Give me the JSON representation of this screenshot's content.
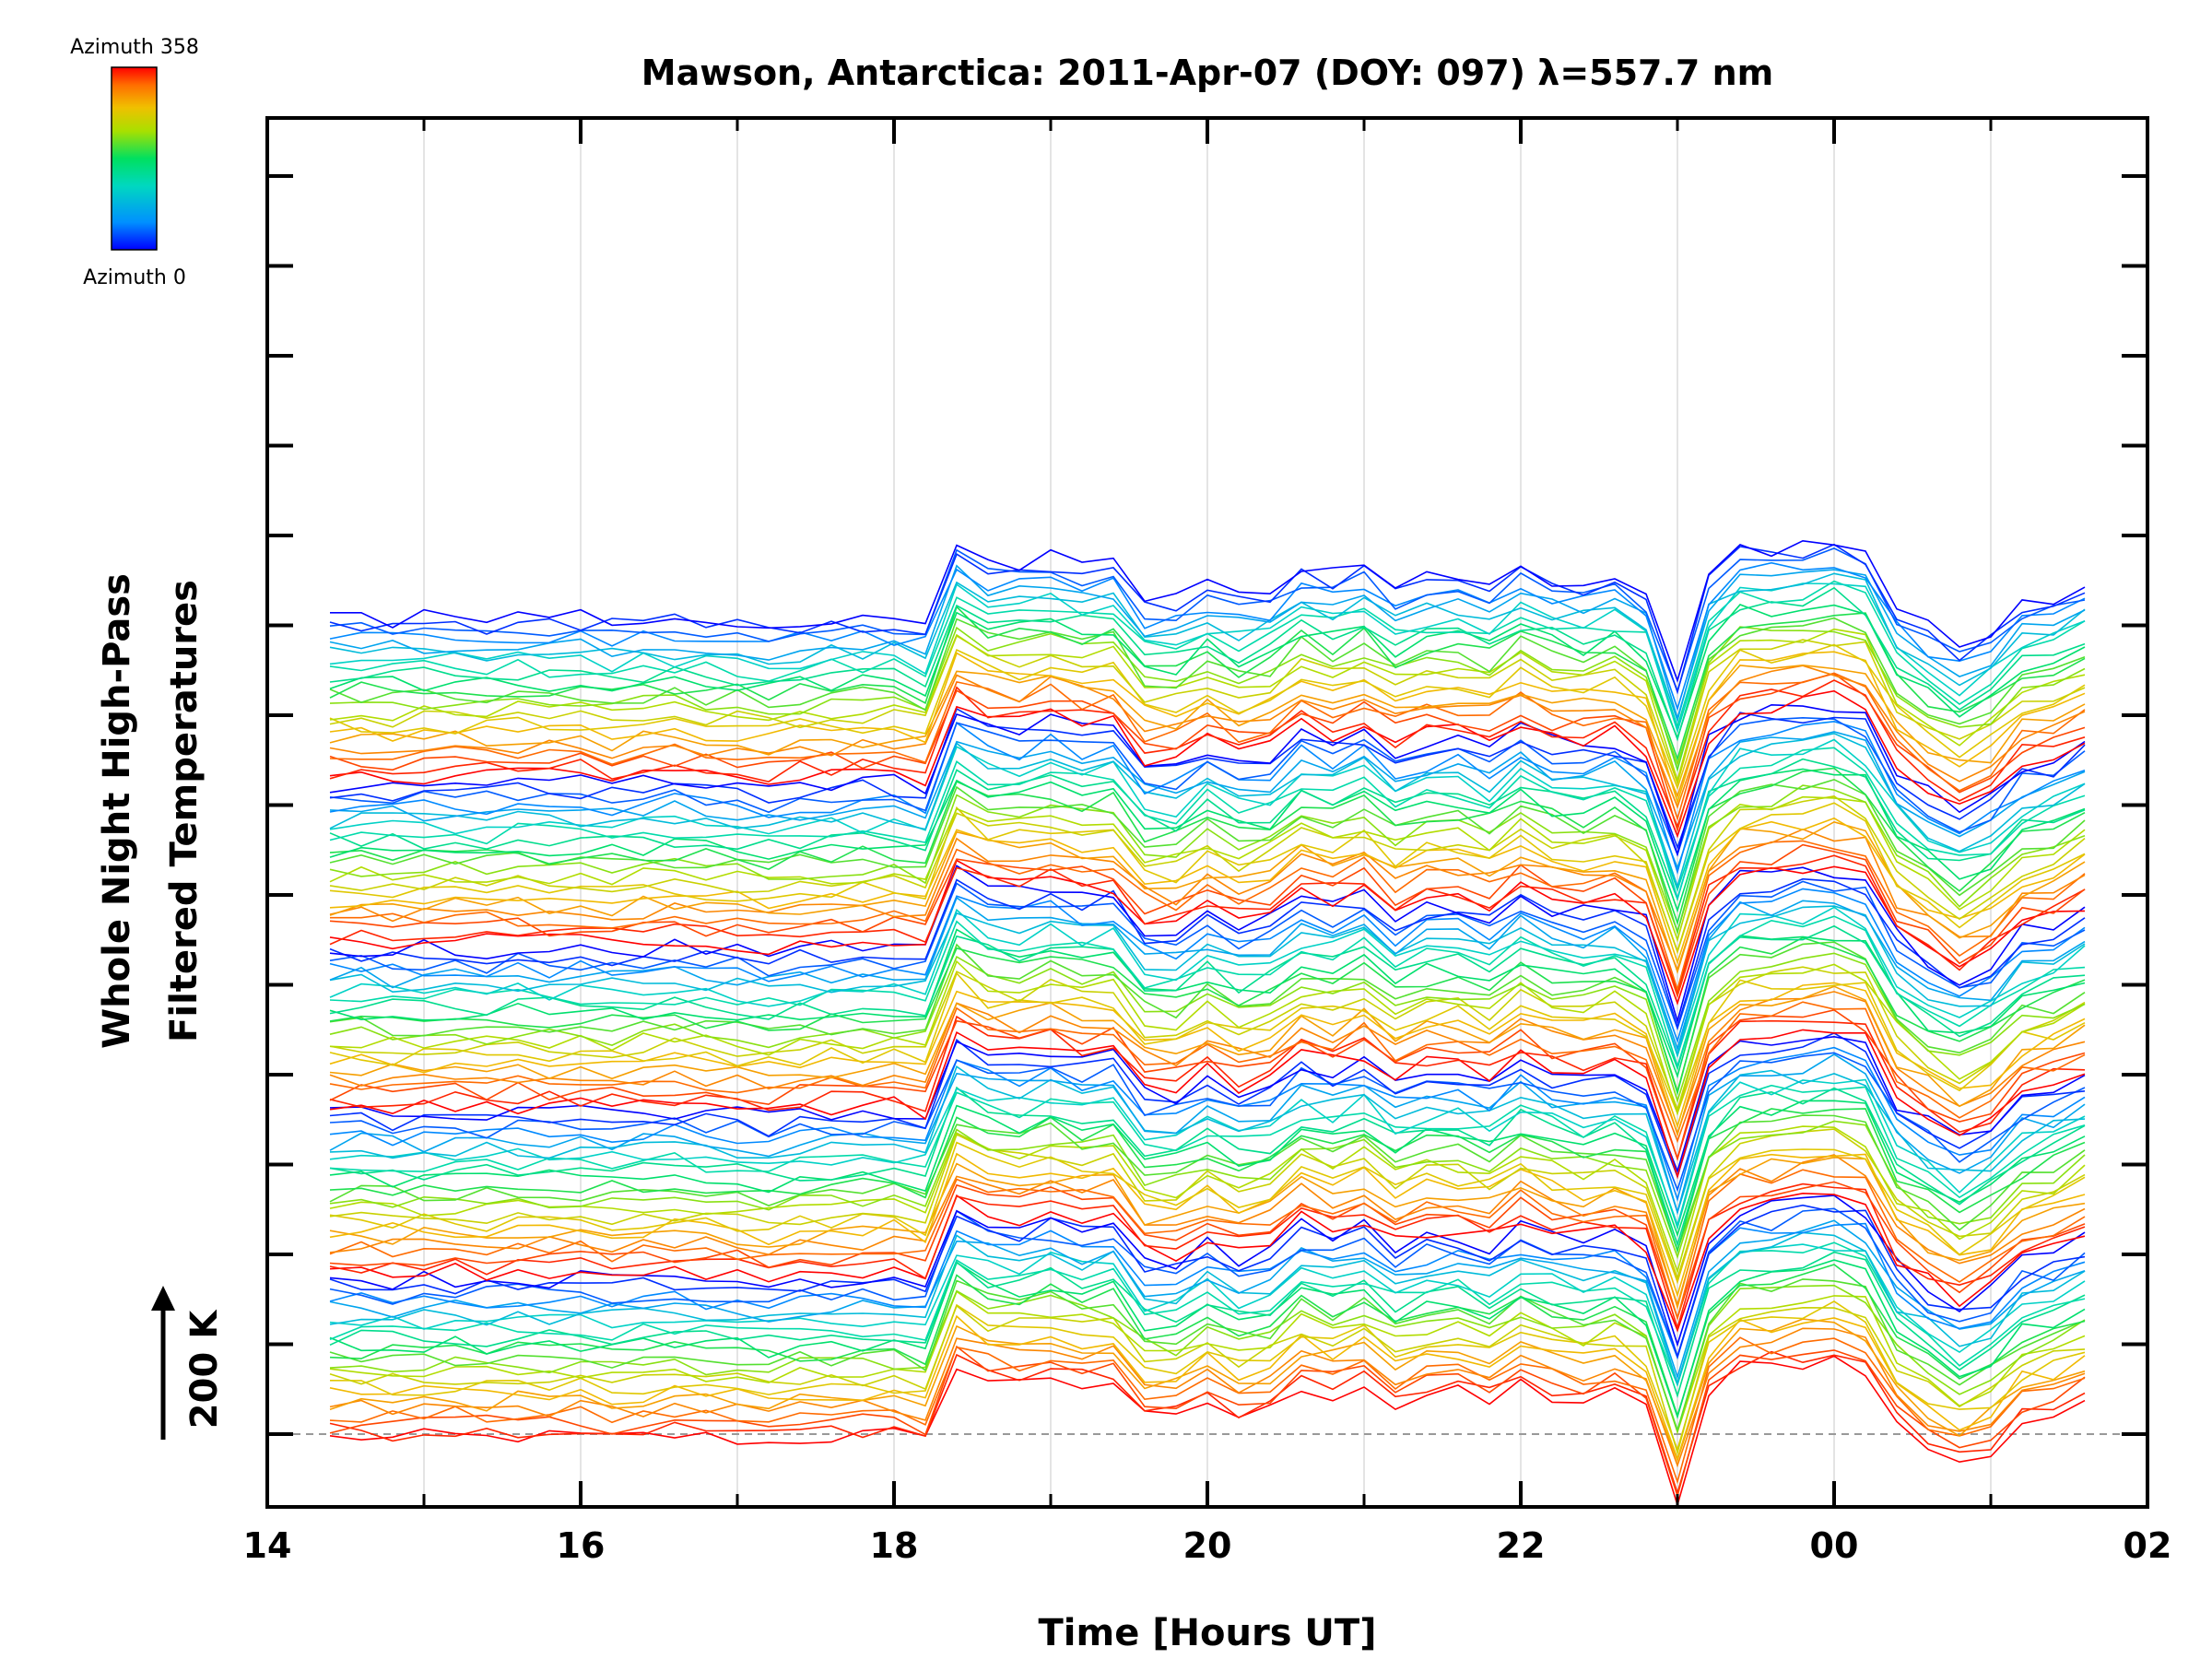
{
  "chart_data": {
    "type": "line",
    "title": "Mawson, Antarctica: 2011-Apr-07 (DOY: 097) λ=557.7 nm",
    "xlabel": "Time [Hours UT]",
    "ylabel": [
      "Whole Night High-Pass",
      "Filtered Temperatures"
    ],
    "scale_label": "200 K",
    "x_ticks": [
      "14",
      "16",
      "18",
      "20",
      "22",
      "00",
      "02"
    ],
    "xlim": [
      14,
      26
    ],
    "colorbar": {
      "top_label": "Azimuth 358",
      "bottom_label": "Azimuth 0",
      "min": 0,
      "max": 358
    },
    "grid": true,
    "trace_count": 115,
    "offset_per_trace_K": 100,
    "time_hours": [
      14.4,
      14.6,
      14.8,
      15.0,
      15.2,
      15.4,
      15.6,
      15.8,
      16.0,
      16.2,
      16.4,
      16.6,
      16.8,
      17.0,
      17.2,
      17.4,
      17.6,
      17.8,
      18.0,
      18.2,
      18.4,
      18.6,
      18.8,
      19.0,
      19.2,
      19.4,
      19.6,
      19.8,
      20.0,
      20.2,
      20.4,
      20.6,
      20.8,
      21.0,
      21.2,
      21.4,
      21.6,
      21.8,
      22.0,
      22.2,
      22.4,
      22.6,
      22.8,
      23.0,
      23.2,
      23.4,
      23.6,
      23.8,
      24.0,
      24.2,
      24.4,
      24.6,
      24.8,
      25.0,
      25.2,
      25.4,
      25.6
    ],
    "mean_temperature_anomaly_K": [
      -10,
      -5,
      -12,
      -8,
      -6,
      -10,
      -4,
      -8,
      -6,
      -12,
      -6,
      -2,
      -8,
      -10,
      -22,
      -10,
      -6,
      -4,
      -2,
      -18,
      160,
      120,
      112,
      130,
      110,
      118,
      35,
      30,
      72,
      40,
      52,
      108,
      88,
      112,
      60,
      86,
      90,
      68,
      112,
      82,
      72,
      88,
      54,
      -150,
      84,
      148,
      150,
      160,
      170,
      146,
      20,
      -30,
      -70,
      -40,
      28,
      42,
      78
    ],
    "azimuth_color_stops": [
      "#0000ff",
      "#0090ff",
      "#00d8c0",
      "#00e060",
      "#a8e000",
      "#f0c000",
      "#ff7000",
      "#ff0000"
    ]
  }
}
